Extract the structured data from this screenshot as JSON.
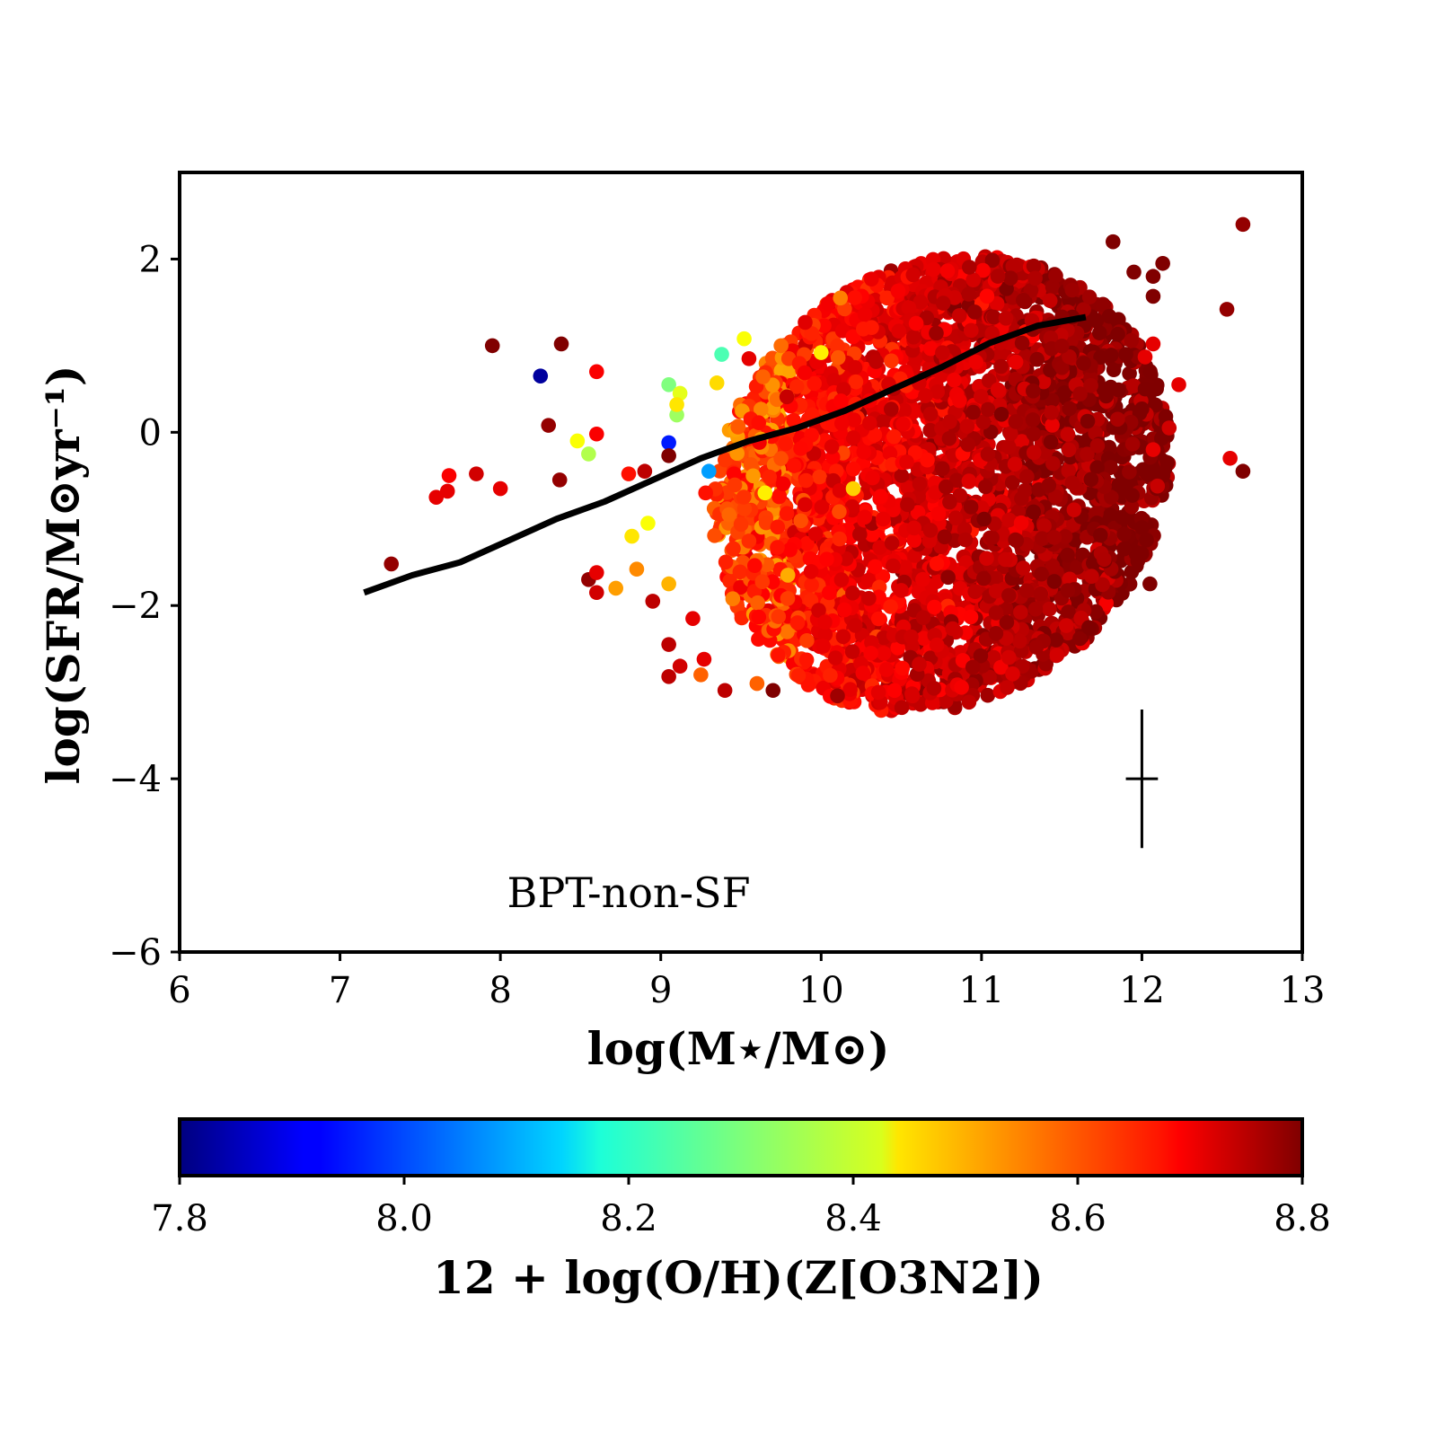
{
  "chart_data": {
    "type": "scatter",
    "xlabel": "log(M⋆/M⊙)",
    "ylabel": "log(SFR/M⊙yr⁻¹)",
    "xlim": [
      6,
      13
    ],
    "ylim": [
      -6,
      3
    ],
    "xticks": [
      "6",
      "7",
      "8",
      "9",
      "10",
      "11",
      "12",
      "13"
    ],
    "yticks": [
      "−6",
      "−4",
      "−2",
      "0",
      "2"
    ],
    "annotation": "BPT-non-SF",
    "grid": false,
    "colorbar": {
      "label": "12 + log(O/H)(Z[O3N2])",
      "range": [
        7.8,
        8.8
      ],
      "ticks": [
        "7.8",
        "8.0",
        "8.2",
        "8.4",
        "8.6",
        "8.8"
      ],
      "colormap": "jet"
    },
    "median_line": {
      "color": "#000000",
      "x": [
        7.15,
        7.45,
        7.75,
        8.05,
        8.35,
        8.65,
        8.95,
        9.25,
        9.55,
        9.85,
        10.15,
        10.45,
        10.75,
        11.05,
        11.35,
        11.65
      ],
      "y": [
        -1.85,
        -1.65,
        -1.5,
        -1.25,
        -1.0,
        -0.8,
        -0.55,
        -0.3,
        -0.1,
        0.05,
        0.25,
        0.5,
        0.75,
        1.03,
        1.23,
        1.33
      ]
    },
    "error_bar": {
      "x": 12.0,
      "y": -4.0,
      "xerr": 0.1,
      "yerr": 0.8
    },
    "cloud": {
      "x_range": [
        9.1,
        12.0
      ],
      "y_range": [
        -3.0,
        2.5
      ],
      "metallicity_range": [
        8.55,
        8.8
      ],
      "count": 3500
    },
    "points": [
      {
        "x": 8.25,
        "y": 0.65,
        "z": 7.83
      },
      {
        "x": 9.05,
        "y": -0.12,
        "z": 7.95
      },
      {
        "x": 9.3,
        "y": -0.45,
        "z": 8.08
      },
      {
        "x": 9.38,
        "y": 0.9,
        "z": 8.25
      },
      {
        "x": 9.05,
        "y": 0.55,
        "z": 8.3
      },
      {
        "x": 8.55,
        "y": -0.25,
        "z": 8.35
      },
      {
        "x": 9.1,
        "y": 0.2,
        "z": 8.33
      },
      {
        "x": 9.12,
        "y": 0.45,
        "z": 8.4
      },
      {
        "x": 8.48,
        "y": -0.1,
        "z": 8.42
      },
      {
        "x": 8.92,
        "y": -1.05,
        "z": 8.42
      },
      {
        "x": 9.52,
        "y": 1.08,
        "z": 8.42
      },
      {
        "x": 8.82,
        "y": -1.2,
        "z": 8.45
      },
      {
        "x": 10.0,
        "y": 0.92,
        "z": 8.44
      },
      {
        "x": 9.65,
        "y": -0.7,
        "z": 8.44
      },
      {
        "x": 9.35,
        "y": 0.57,
        "z": 8.46
      },
      {
        "x": 9.1,
        "y": 0.32,
        "z": 8.45
      },
      {
        "x": 8.72,
        "y": -1.8,
        "z": 8.52
      },
      {
        "x": 8.85,
        "y": -1.58,
        "z": 8.54
      },
      {
        "x": 9.05,
        "y": -1.75,
        "z": 8.5
      },
      {
        "x": 9.25,
        "y": -2.8,
        "z": 8.58
      },
      {
        "x": 9.6,
        "y": -2.9,
        "z": 8.58
      },
      {
        "x": 10.12,
        "y": 1.55,
        "z": 8.55
      },
      {
        "x": 9.75,
        "y": 1.0,
        "z": 8.57
      },
      {
        "x": 10.2,
        "y": -0.65,
        "z": 8.47
      },
      {
        "x": 7.32,
        "y": -1.52,
        "z": 8.78
      },
      {
        "x": 7.6,
        "y": -0.75,
        "z": 8.7
      },
      {
        "x": 7.67,
        "y": -0.68,
        "z": 8.7
      },
      {
        "x": 7.68,
        "y": -0.5,
        "z": 8.68
      },
      {
        "x": 7.85,
        "y": -0.48,
        "z": 8.72
      },
      {
        "x": 8.0,
        "y": -0.65,
        "z": 8.7
      },
      {
        "x": 7.95,
        "y": 1.0,
        "z": 8.8
      },
      {
        "x": 8.38,
        "y": 1.02,
        "z": 8.8
      },
      {
        "x": 8.3,
        "y": 0.08,
        "z": 8.78
      },
      {
        "x": 8.37,
        "y": -0.55,
        "z": 8.78
      },
      {
        "x": 8.6,
        "y": 0.7,
        "z": 8.68
      },
      {
        "x": 8.6,
        "y": -0.02,
        "z": 8.68
      },
      {
        "x": 8.55,
        "y": -1.7,
        "z": 8.78
      },
      {
        "x": 8.6,
        "y": -1.62,
        "z": 8.7
      },
      {
        "x": 8.6,
        "y": -1.85,
        "z": 8.72
      },
      {
        "x": 8.8,
        "y": -0.48,
        "z": 8.66
      },
      {
        "x": 8.9,
        "y": -0.45,
        "z": 8.74
      },
      {
        "x": 8.95,
        "y": -1.95,
        "z": 8.74
      },
      {
        "x": 9.05,
        "y": -0.27,
        "z": 8.8
      },
      {
        "x": 9.05,
        "y": -2.45,
        "z": 8.74
      },
      {
        "x": 9.05,
        "y": -2.82,
        "z": 8.74
      },
      {
        "x": 9.12,
        "y": -2.7,
        "z": 8.72
      },
      {
        "x": 9.27,
        "y": -2.62,
        "z": 8.7
      },
      {
        "x": 9.2,
        "y": -2.15,
        "z": 8.7
      },
      {
        "x": 9.28,
        "y": -0.7,
        "z": 8.66
      },
      {
        "x": 9.4,
        "y": -2.98,
        "z": 8.74
      },
      {
        "x": 9.7,
        "y": -2.98,
        "z": 8.8
      },
      {
        "x": 9.55,
        "y": 0.85,
        "z": 8.7
      },
      {
        "x": 11.95,
        "y": 1.85,
        "z": 8.8
      },
      {
        "x": 12.07,
        "y": 1.8,
        "z": 8.8
      },
      {
        "x": 12.13,
        "y": 1.95,
        "z": 8.8
      },
      {
        "x": 12.07,
        "y": 1.57,
        "z": 8.8
      },
      {
        "x": 11.82,
        "y": 2.2,
        "z": 8.8
      },
      {
        "x": 11.9,
        "y": 0.9,
        "z": 8.8
      },
      {
        "x": 12.02,
        "y": 0.87,
        "z": 8.7
      },
      {
        "x": 12.07,
        "y": 1.02,
        "z": 8.7
      },
      {
        "x": 12.02,
        "y": 0.5,
        "z": 8.8
      },
      {
        "x": 12.0,
        "y": 0.27,
        "z": 8.8
      },
      {
        "x": 12.23,
        "y": 0.55,
        "z": 8.7
      },
      {
        "x": 12.17,
        "y": 0.05,
        "z": 8.72
      },
      {
        "x": 12.07,
        "y": -0.2,
        "z": 8.7
      },
      {
        "x": 12.0,
        "y": -1.1,
        "z": 8.8
      },
      {
        "x": 12.0,
        "y": -1.4,
        "z": 8.8
      },
      {
        "x": 12.05,
        "y": -1.75,
        "z": 8.8
      },
      {
        "x": 12.53,
        "y": 1.42,
        "z": 8.78
      },
      {
        "x": 12.63,
        "y": 2.4,
        "z": 8.78
      },
      {
        "x": 12.55,
        "y": -0.3,
        "z": 8.7
      },
      {
        "x": 12.63,
        "y": -0.45,
        "z": 8.8
      }
    ]
  }
}
